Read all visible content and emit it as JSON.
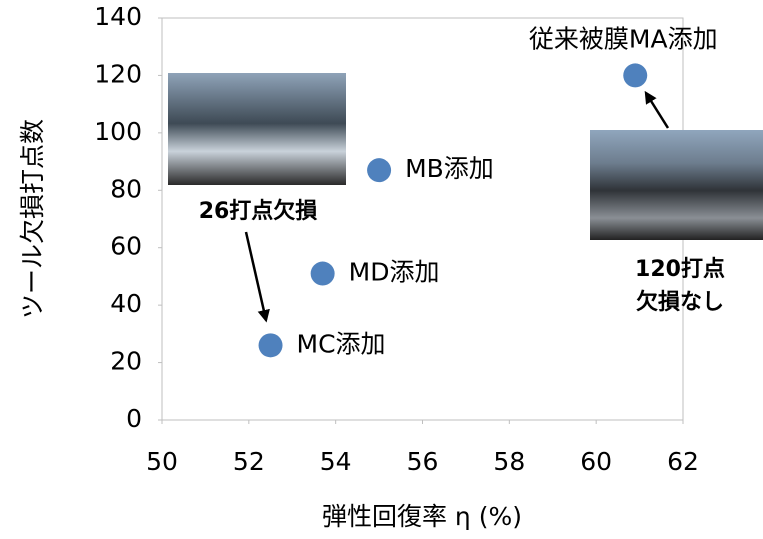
{
  "chart_data": {
    "type": "scatter",
    "x_label": "弾性回復率 η (%)",
    "y_label": "ツール欠損打点数",
    "series": [
      {
        "color": "#4f81bd",
        "x": [
          52.5,
          53.7,
          55.0,
          60.9
        ],
        "values": [
          26,
          51,
          87,
          120
        ],
        "point_labels": [
          "MC添加",
          "MD添加",
          "MB添加",
          "従来被膜MA添加"
        ]
      }
    ],
    "annotations": [
      "26打点欠損",
      "120打点",
      "欠損なし"
    ],
    "xlim": [
      50,
      62
    ],
    "xticks": [
      50,
      52,
      54,
      56,
      58,
      60,
      62
    ],
    "ylim": [
      0,
      140
    ],
    "yticks": [
      0,
      20,
      40,
      60,
      80,
      100,
      120,
      140
    ]
  }
}
